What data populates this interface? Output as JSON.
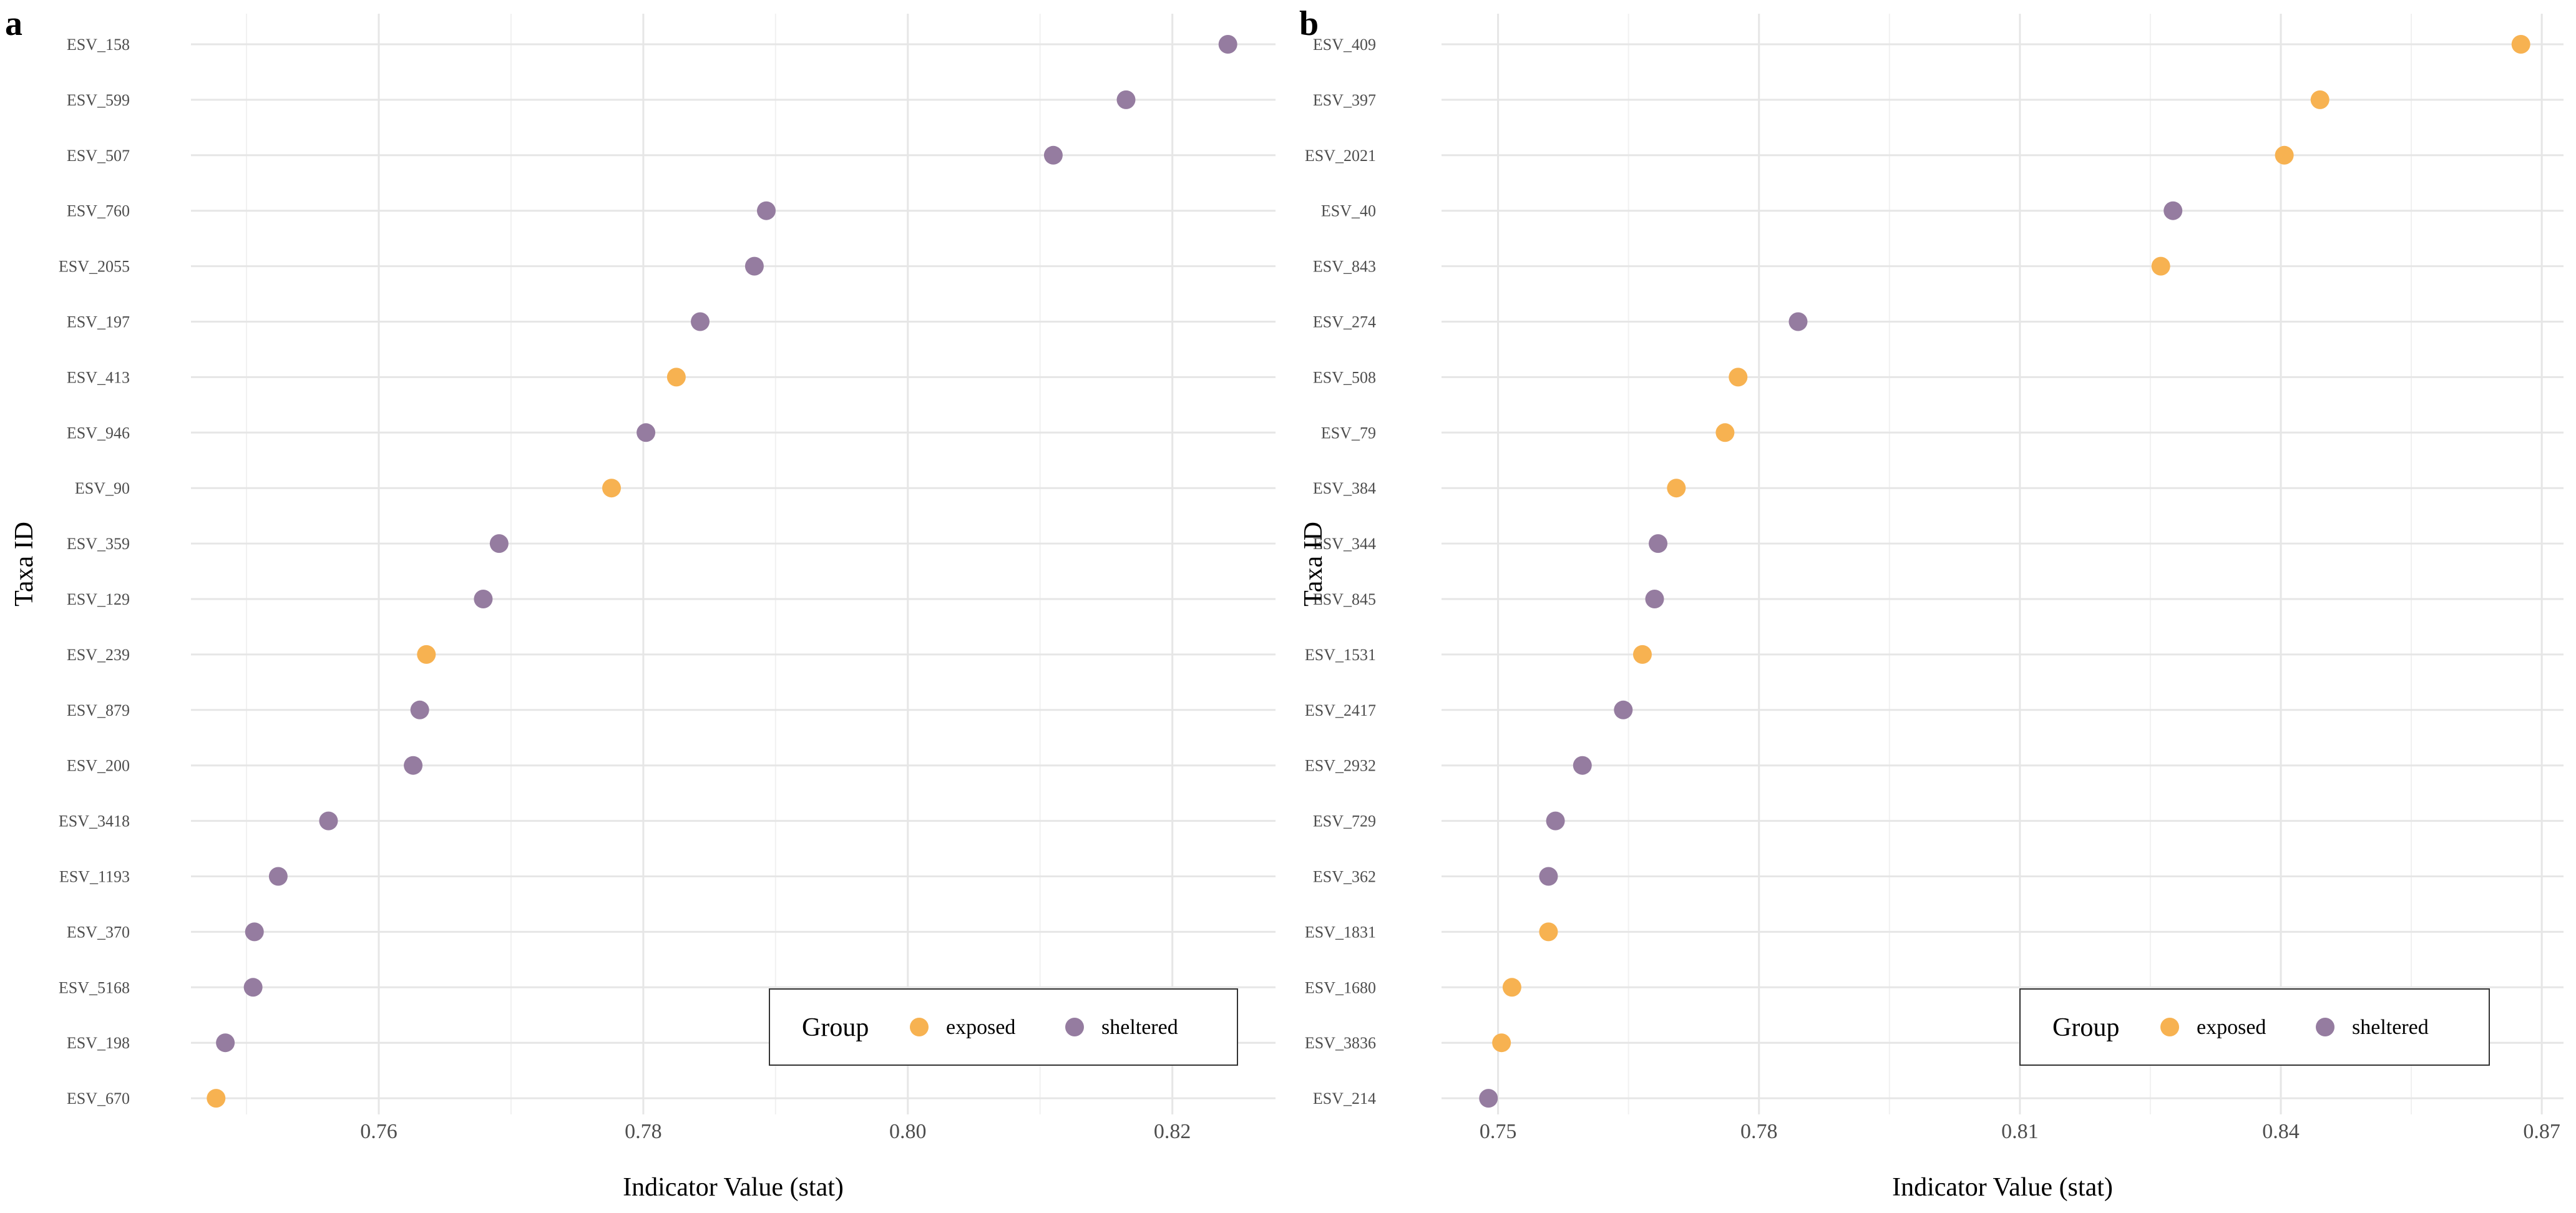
{
  "colors": {
    "exposed": "#F7B251",
    "sheltered": "#957CA0",
    "grid_major": "#e6e6e6",
    "grid_minor": "#f1f1f1"
  },
  "chart_data": [
    {
      "panel": "a",
      "type": "scatter",
      "xlabel": "Indicator Value (stat)",
      "ylabel": "Taxa ID",
      "xlim": [
        0.7458,
        0.8278
      ],
      "x_ticks": [
        0.76,
        0.78,
        0.8,
        0.82
      ],
      "x_tick_labels": [
        "0.76",
        "0.78",
        "0.80",
        "0.82"
      ],
      "legend": {
        "title": "Group",
        "labels": [
          "exposed",
          "sheltered"
        ],
        "position": "bottom-right"
      },
      "points": [
        {
          "taxa": "ESV_158",
          "value": 0.8242,
          "group": "sheltered"
        },
        {
          "taxa": "ESV_599",
          "value": 0.8165,
          "group": "sheltered"
        },
        {
          "taxa": "ESV_507",
          "value": 0.811,
          "group": "sheltered"
        },
        {
          "taxa": "ESV_760",
          "value": 0.7893,
          "group": "sheltered"
        },
        {
          "taxa": "ESV_2055",
          "value": 0.7884,
          "group": "sheltered"
        },
        {
          "taxa": "ESV_197",
          "value": 0.7843,
          "group": "sheltered"
        },
        {
          "taxa": "ESV_413",
          "value": 0.7825,
          "group": "exposed"
        },
        {
          "taxa": "ESV_946",
          "value": 0.7802,
          "group": "sheltered"
        },
        {
          "taxa": "ESV_90",
          "value": 0.7776,
          "group": "exposed"
        },
        {
          "taxa": "ESV_359",
          "value": 0.7691,
          "group": "sheltered"
        },
        {
          "taxa": "ESV_129",
          "value": 0.7679,
          "group": "sheltered"
        },
        {
          "taxa": "ESV_239",
          "value": 0.7636,
          "group": "exposed"
        },
        {
          "taxa": "ESV_879",
          "value": 0.7631,
          "group": "sheltered"
        },
        {
          "taxa": "ESV_200",
          "value": 0.7626,
          "group": "sheltered"
        },
        {
          "taxa": "ESV_3418",
          "value": 0.7562,
          "group": "sheltered"
        },
        {
          "taxa": "ESV_1193",
          "value": 0.7524,
          "group": "sheltered"
        },
        {
          "taxa": "ESV_370",
          "value": 0.7506,
          "group": "sheltered"
        },
        {
          "taxa": "ESV_5168",
          "value": 0.7505,
          "group": "sheltered"
        },
        {
          "taxa": "ESV_198",
          "value": 0.7484,
          "group": "sheltered"
        },
        {
          "taxa": "ESV_670",
          "value": 0.7477,
          "group": "exposed"
        }
      ]
    },
    {
      "panel": "b",
      "type": "scatter",
      "xlabel": "Indicator Value (stat)",
      "ylabel": "Taxa ID",
      "xlim": [
        0.7435,
        0.8725
      ],
      "x_ticks": [
        0.75,
        0.78,
        0.81,
        0.84,
        0.87
      ],
      "x_tick_labels": [
        "0.75",
        "0.78",
        "0.81",
        "0.84",
        "0.87"
      ],
      "legend": {
        "title": "Group",
        "labels": [
          "exposed",
          "sheltered"
        ],
        "position": "bottom-right"
      },
      "points": [
        {
          "taxa": "ESV_409",
          "value": 0.8676,
          "group": "exposed"
        },
        {
          "taxa": "ESV_397",
          "value": 0.8445,
          "group": "exposed"
        },
        {
          "taxa": "ESV_2021",
          "value": 0.8404,
          "group": "exposed"
        },
        {
          "taxa": "ESV_40",
          "value": 0.8276,
          "group": "sheltered"
        },
        {
          "taxa": "ESV_843",
          "value": 0.8262,
          "group": "exposed"
        },
        {
          "taxa": "ESV_274",
          "value": 0.7845,
          "group": "sheltered"
        },
        {
          "taxa": "ESV_508",
          "value": 0.7776,
          "group": "exposed"
        },
        {
          "taxa": "ESV_79",
          "value": 0.7761,
          "group": "exposed"
        },
        {
          "taxa": "ESV_384",
          "value": 0.7705,
          "group": "exposed"
        },
        {
          "taxa": "ESV_344",
          "value": 0.7684,
          "group": "sheltered"
        },
        {
          "taxa": "ESV_845",
          "value": 0.768,
          "group": "sheltered"
        },
        {
          "taxa": "ESV_1531",
          "value": 0.7666,
          "group": "exposed"
        },
        {
          "taxa": "ESV_2417",
          "value": 0.7644,
          "group": "sheltered"
        },
        {
          "taxa": "ESV_2932",
          "value": 0.7597,
          "group": "sheltered"
        },
        {
          "taxa": "ESV_729",
          "value": 0.7566,
          "group": "sheltered"
        },
        {
          "taxa": "ESV_362",
          "value": 0.7558,
          "group": "sheltered"
        },
        {
          "taxa": "ESV_1831",
          "value": 0.7558,
          "group": "exposed"
        },
        {
          "taxa": "ESV_1680",
          "value": 0.7516,
          "group": "exposed"
        },
        {
          "taxa": "ESV_3836",
          "value": 0.7504,
          "group": "exposed"
        },
        {
          "taxa": "ESV_214",
          "value": 0.7489,
          "group": "sheltered"
        }
      ]
    }
  ]
}
